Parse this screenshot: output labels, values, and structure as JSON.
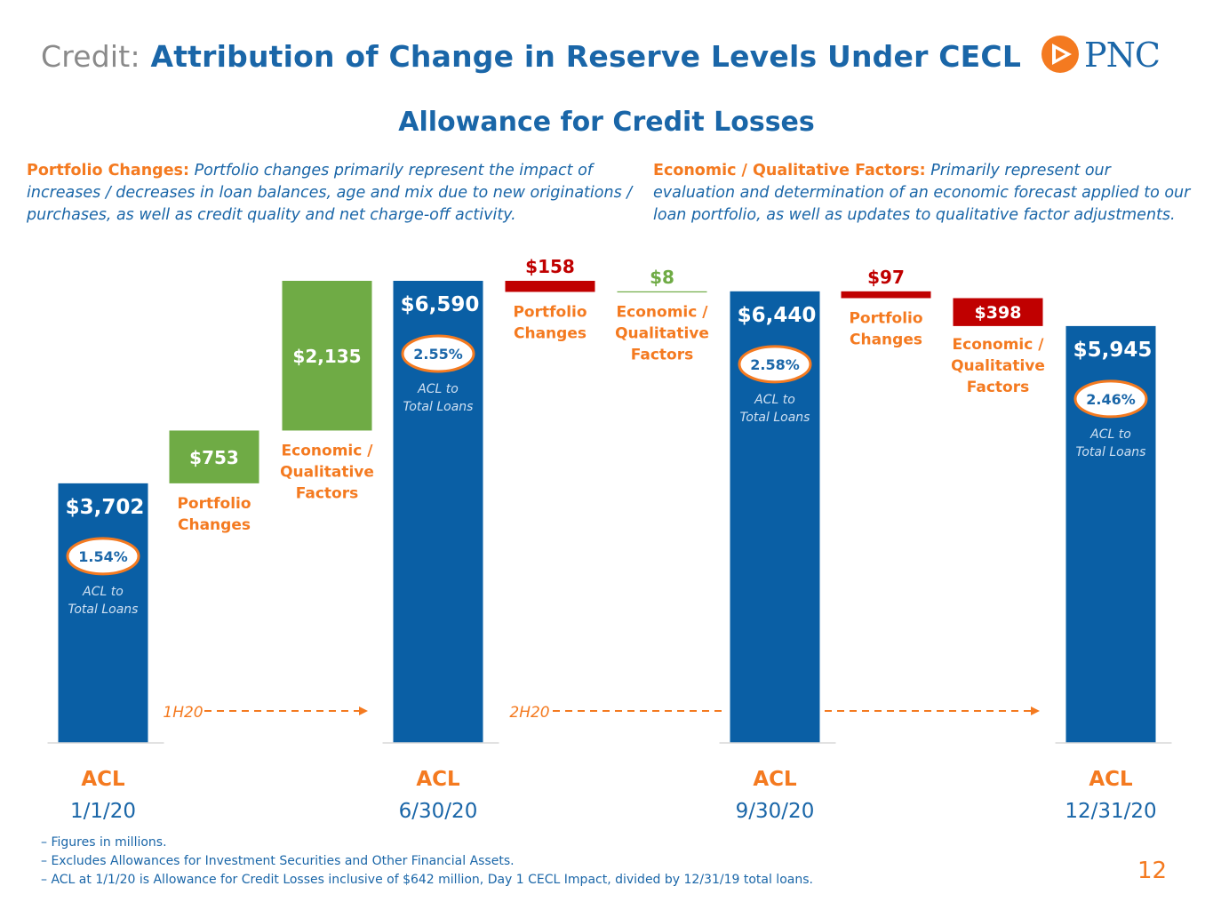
{
  "header": {
    "title_prefix": "Credit:",
    "title_main": "Attribution of Change in Reserve Levels Under CECL",
    "logo_text": "PNC"
  },
  "subtitle": "Allowance for Credit Losses",
  "descriptions": {
    "left": {
      "label": "Portfolio Changes:",
      "text": "Portfolio changes primarily represent the impact of increases / decreases in loan balances, age and mix due to new originations / purchases, as well as credit quality and net charge-off activity."
    },
    "right": {
      "label": "Economic / Qualitative Factors:",
      "text": "Primarily represent our evaluation and determination of an economic forecast applied to our loan portfolio, as well as updates to qualitative factor adjustments."
    }
  },
  "chart_data": {
    "type": "bar",
    "subtype": "waterfall",
    "title": "Allowance for Credit Losses",
    "units": "$ millions",
    "bars": [
      {
        "kind": "total",
        "value": 3702,
        "label": "$3,702",
        "ratio": "1.54%",
        "ratio_label": [
          "ACL to",
          "Total Loans"
        ],
        "cat_top": "ACL",
        "cat_bottom": "1/1/20"
      },
      {
        "kind": "increase",
        "value": 753,
        "label": "$753",
        "name": [
          "Portfolio",
          "Changes"
        ]
      },
      {
        "kind": "increase",
        "value": 2135,
        "label": "$2,135",
        "name": [
          "Economic /",
          "Qualitative",
          "Factors"
        ]
      },
      {
        "kind": "total",
        "value": 6590,
        "label": "$6,590",
        "ratio": "2.55%",
        "ratio_label": [
          "ACL to",
          "Total Loans"
        ],
        "cat_top": "ACL",
        "cat_bottom": "6/30/20"
      },
      {
        "kind": "decrease",
        "value": 158,
        "label": "$158",
        "name": [
          "Portfolio",
          "Changes"
        ]
      },
      {
        "kind": "increase",
        "value": 8,
        "label": "$8",
        "name": [
          "Economic /",
          "Qualitative",
          "Factors"
        ]
      },
      {
        "kind": "total",
        "value": 6440,
        "label": "$6,440",
        "ratio": "2.58%",
        "ratio_label": [
          "ACL to",
          "Total Loans"
        ],
        "cat_top": "ACL",
        "cat_bottom": "9/30/20"
      },
      {
        "kind": "decrease",
        "value": 97,
        "label": "$97",
        "name": [
          "Portfolio",
          "Changes"
        ]
      },
      {
        "kind": "decrease",
        "value": 398,
        "label": "$398",
        "name": [
          "Economic /",
          "Qualitative",
          "Factors"
        ]
      },
      {
        "kind": "total",
        "value": 5945,
        "label": "$5,945",
        "ratio": "2.46%",
        "ratio_label": [
          "ACL to",
          "Total Loans"
        ],
        "cat_top": "ACL",
        "cat_bottom": "12/31/20"
      }
    ],
    "periods": [
      {
        "label": "1H20"
      },
      {
        "label": "2H20"
      }
    ],
    "colors": {
      "total": "#0a5fa5",
      "increase": "#6fab45",
      "decrease": "#c00000",
      "accent": "#f47a20",
      "text_blue": "#1a66a8"
    }
  },
  "footnotes": [
    "Figures in millions.",
    "Excludes Allowances for Investment Securities and Other Financial Assets.",
    "ACL at 1/1/20 is Allowance for Credit Losses inclusive of $642 million, Day 1 CECL Impact, divided by 12/31/19 total loans."
  ],
  "page_number": "12"
}
